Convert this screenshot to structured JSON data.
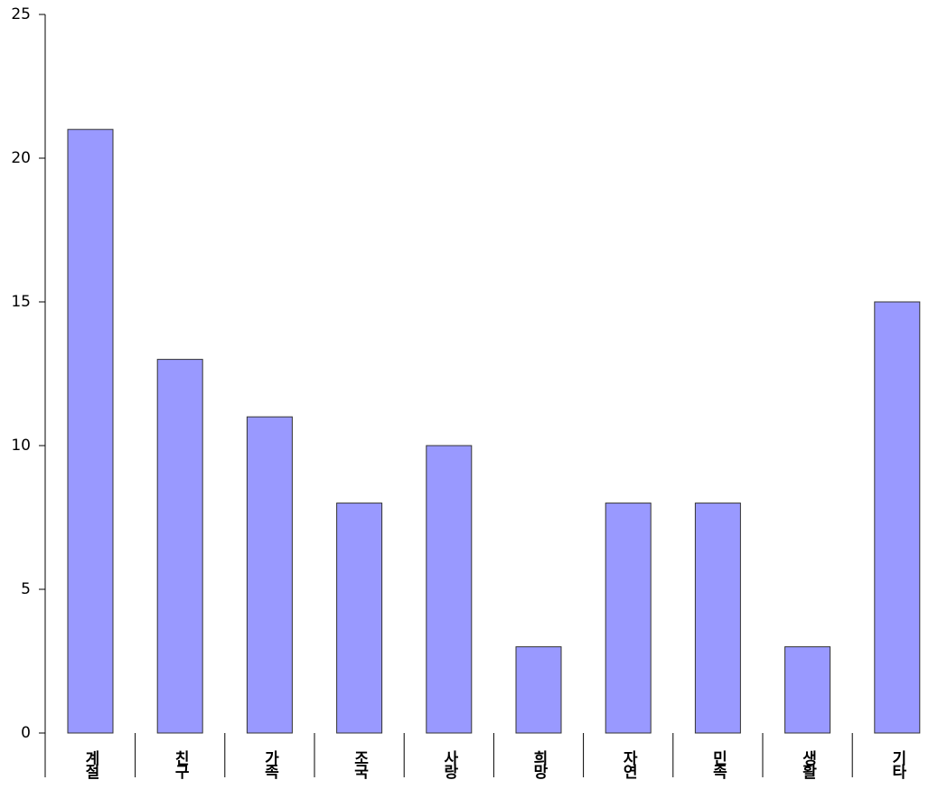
{
  "chart_data": {
    "type": "bar",
    "categories": [
      "계절",
      "친구",
      "가족",
      "조국",
      "사랑",
      "희망",
      "자연",
      "민족",
      "생활",
      "기타"
    ],
    "values": [
      21,
      13,
      11,
      8,
      10,
      3,
      8,
      8,
      3,
      15
    ],
    "color": "#9999ff",
    "ylim": [
      0,
      25
    ],
    "yticks": [
      0,
      5,
      10,
      15,
      20,
      25
    ],
    "grid": false
  }
}
